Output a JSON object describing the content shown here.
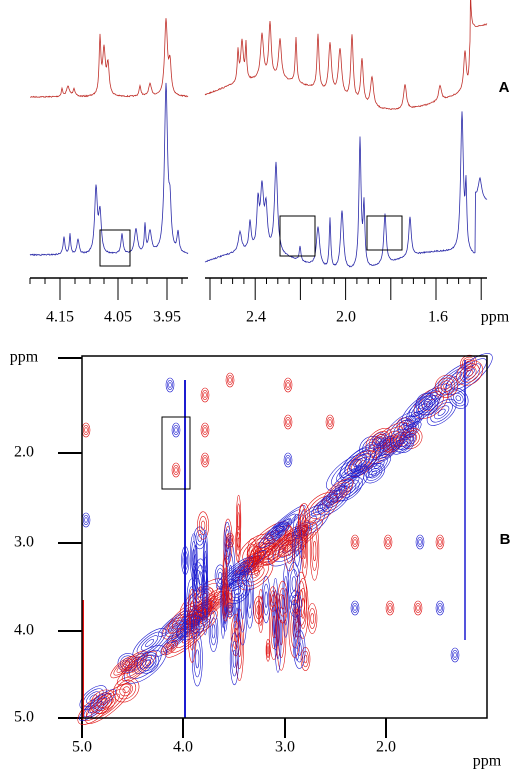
{
  "panel_a": {
    "label": "A",
    "axis_label": "ppm",
    "left_ticks": [
      "4.15",
      "4.05",
      "3.95"
    ],
    "right_ticks": [
      "2.4",
      "2.0",
      "1.6"
    ]
  },
  "panel_b": {
    "label": "B",
    "y_label": "ppm",
    "y_ticks": [
      "2.0",
      "3.0",
      "4.0",
      "5.0"
    ],
    "x_ticks": [
      "5.0",
      "4.0",
      "3.0",
      "2.0"
    ],
    "x_label": "ppm"
  }
}
